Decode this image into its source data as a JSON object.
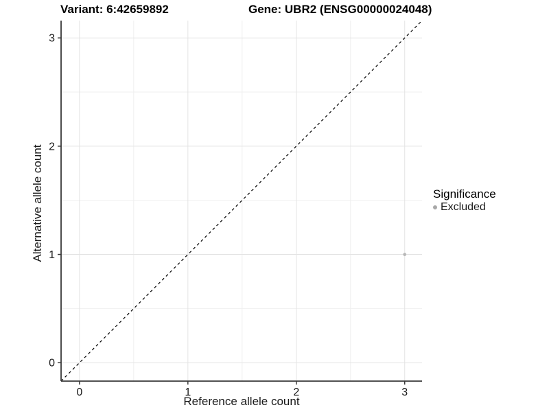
{
  "header": {
    "variant_title": "Variant: 6:42659892",
    "gene_title": "Gene: UBR2 (ENSG00000024048)"
  },
  "legend": {
    "title": "Significance",
    "items": [
      {
        "label": "Excluded",
        "color": "#a8a8a8"
      }
    ]
  },
  "colors": {
    "grid_major": "#e3e3e3",
    "grid_minor": "#efefef",
    "axis": "#383838",
    "tick_text": "#1a1a1a",
    "point": "#b8b8b8",
    "identity_line": "#000000"
  },
  "chart_data": {
    "type": "scatter",
    "title": "Variant: 6:42659892 | Gene: UBR2 (ENSG00000024048)",
    "xlabel": "Reference allele count",
    "ylabel": "Alternative allele count",
    "xlim": [
      -0.17,
      3.16
    ],
    "ylim": [
      -0.17,
      3.16
    ],
    "x_ticks": [
      0,
      1,
      2,
      3
    ],
    "x_tick_labels": [
      "0",
      "1",
      "2",
      "3"
    ],
    "y_ticks": [
      0,
      1,
      2,
      3
    ],
    "y_tick_labels": [
      "0",
      "1",
      "2",
      "3"
    ],
    "x_minor_ticks": [
      0.5,
      1.5,
      2.5
    ],
    "y_minor_ticks": [
      0.5,
      1.5,
      2.5
    ],
    "grid": true,
    "legend_position": "right",
    "series": [
      {
        "name": "Excluded",
        "color": "#b8b8b8",
        "points": [
          {
            "x": 3,
            "y": 1
          }
        ]
      }
    ],
    "identity_line": {
      "slope": 1,
      "intercept": 0,
      "style": "dashed",
      "color": "#000000"
    }
  }
}
